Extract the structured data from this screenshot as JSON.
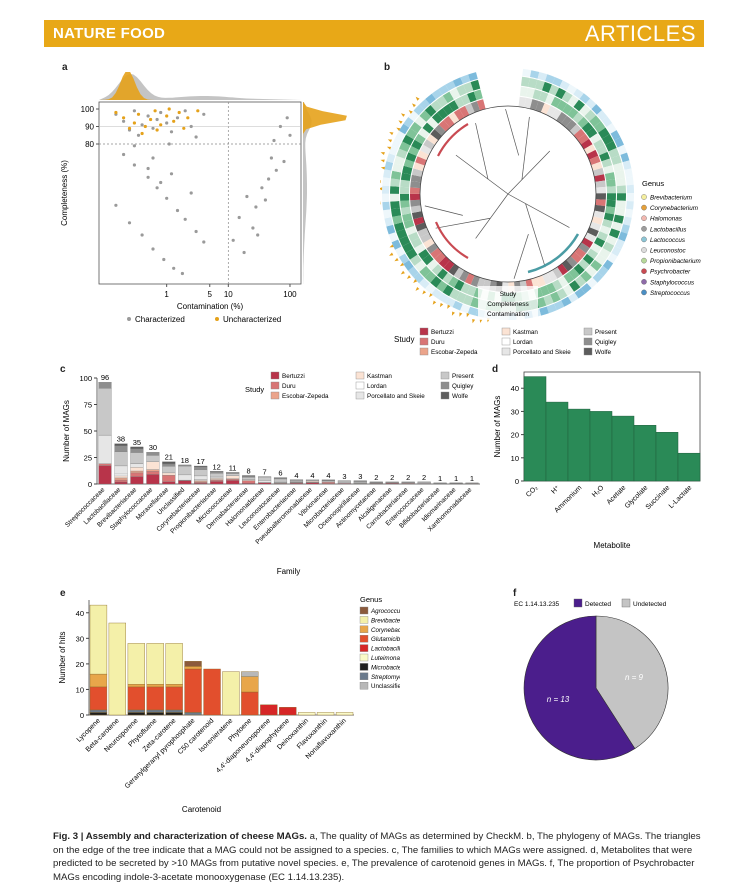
{
  "header": {
    "journal": "NATURE FOOD",
    "section": "ARTICLES"
  },
  "panels": {
    "a": "a",
    "b": "b",
    "c": "c",
    "d": "d",
    "e": "e",
    "f": "f"
  },
  "colors": {
    "banner": "#e8a817",
    "gold": "#e5a21b",
    "gray": "#9a9a9a",
    "green": "#2a8a57",
    "purple": "#4b1e8c",
    "pie_gray": "#c4c4c4"
  },
  "chart_data": [
    {
      "id": "a",
      "type": "scatter",
      "xlabel": "Contamination (%)",
      "ylabel": "Completeness (%)",
      "x_ticks": [
        "1",
        "5",
        "10",
        "100"
      ],
      "y_ticks": [
        "80",
        "90",
        "100"
      ],
      "x_scale": "log",
      "xlim": [
        0.1,
        130
      ],
      "ylim": [
        0,
        104
      ],
      "legend": [
        "Characterized",
        "Uncharacterized"
      ],
      "series": [
        {
          "name": "Characterized",
          "color": "#9a9a9a",
          "points": [
            [
              0.15,
              97
            ],
            [
              0.2,
              93
            ],
            [
              0.25,
              88
            ],
            [
              0.3,
              99
            ],
            [
              0.35,
              85
            ],
            [
              0.4,
              91
            ],
            [
              0.5,
              96
            ],
            [
              0.6,
              89
            ],
            [
              0.7,
              94
            ],
            [
              0.8,
              98
            ],
            [
              1.0,
              92
            ],
            [
              1.2,
              87
            ],
            [
              1.5,
              95
            ],
            [
              2.0,
              99
            ],
            [
              2.5,
              90
            ],
            [
              3,
              84
            ],
            [
              4,
              97
            ],
            [
              0.2,
              74
            ],
            [
              0.3,
              68
            ],
            [
              0.5,
              61
            ],
            [
              0.7,
              55
            ],
            [
              1.0,
              49
            ],
            [
              1.5,
              42
            ],
            [
              2,
              37
            ],
            [
              3,
              30
            ],
            [
              4,
              24
            ],
            [
              0.3,
              79
            ],
            [
              0.6,
              72
            ],
            [
              1.2,
              63
            ],
            [
              2.5,
              52
            ],
            [
              0.15,
              45
            ],
            [
              0.25,
              35
            ],
            [
              0.4,
              28
            ],
            [
              0.6,
              20
            ],
            [
              0.9,
              14
            ],
            [
              1.3,
              9
            ],
            [
              1.8,
              6
            ],
            [
              0.5,
              66
            ],
            [
              0.8,
              58
            ],
            [
              1.1,
              80
            ],
            [
              20,
              50
            ],
            [
              28,
              44
            ],
            [
              35,
              55
            ],
            [
              45,
              60
            ],
            [
              60,
              65
            ],
            [
              80,
              70
            ],
            [
              15,
              38
            ],
            [
              25,
              32
            ],
            [
              40,
              48
            ],
            [
              55,
              82
            ],
            [
              70,
              90
            ],
            [
              90,
              95
            ],
            [
              12,
              25
            ],
            [
              18,
              18
            ],
            [
              30,
              28
            ],
            [
              50,
              72
            ],
            [
              100,
              85
            ]
          ]
        },
        {
          "name": "Uncharacterized",
          "color": "#e5a21b",
          "points": [
            [
              0.15,
              98
            ],
            [
              0.2,
              95
            ],
            [
              0.3,
              92
            ],
            [
              0.35,
              97
            ],
            [
              0.45,
              90
            ],
            [
              0.55,
              94
            ],
            [
              0.65,
              99
            ],
            [
              0.8,
              91
            ],
            [
              1.0,
              96
            ],
            [
              1.3,
              93
            ],
            [
              1.6,
              98
            ],
            [
              2.2,
              95
            ],
            [
              3.2,
              99
            ],
            [
              0.25,
              89
            ],
            [
              0.4,
              86
            ],
            [
              0.7,
              88
            ],
            [
              1.1,
              100
            ],
            [
              1.9,
              89
            ]
          ]
        }
      ]
    },
    {
      "id": "b",
      "type": "phylogeny",
      "legend_title": "Genus",
      "genus": [
        {
          "name": "Brevibacterium",
          "color": "#f4ee9e"
        },
        {
          "name": "Corynebacterium",
          "color": "#e5a03a"
        },
        {
          "name": "Halomonas",
          "color": "#f2b8b0"
        },
        {
          "name": "Lactobacillus",
          "color": "#9d9d9d"
        },
        {
          "name": "Lactococcus",
          "color": "#8cc6d6"
        },
        {
          "name": "Leuconostoc",
          "color": "#dcdcdc"
        },
        {
          "name": "Propionibacterium",
          "color": "#b7d99a"
        },
        {
          "name": "Psychrobacter",
          "color": "#c94a52"
        },
        {
          "name": "Staphylococcus",
          "color": "#8e6aa8"
        },
        {
          "name": "Streptococcus",
          "color": "#4a8ec4"
        }
      ],
      "ring_labels": [
        "Study",
        "Completeness",
        "Contamination"
      ],
      "study_title": "Study",
      "study": [
        {
          "name": "Bertuzzi",
          "color": "#b8344a"
        },
        {
          "name": "Duru",
          "color": "#d87575"
        },
        {
          "name": "Escobar-Zepeda",
          "color": "#eba48b"
        },
        {
          "name": "Kastman",
          "color": "#fbe3d4"
        },
        {
          "name": "Lordan",
          "color": "#ffffff"
        },
        {
          "name": "Porcellato and Skeie",
          "color": "#e6e6e6"
        },
        {
          "name": "Present",
          "color": "#c8c8c8"
        },
        {
          "name": "Quigley",
          "color": "#8e8e8e"
        },
        {
          "name": "Wolfe",
          "color": "#5c5c5c"
        }
      ]
    },
    {
      "id": "c",
      "type": "bar",
      "xlabel": "Family",
      "ylabel": "Number of MAGs",
      "ylim": [
        0,
        100
      ],
      "y_ticks": [
        "0",
        "25",
        "50",
        "75",
        "100"
      ],
      "categories": [
        "Streptococcaceae",
        "Lactobacillaceae",
        "Brevibacteriaceae",
        "Staphylococcaceae",
        "Moraxellaceae",
        "Unclassified",
        "Corynebacteriaceae",
        "Propionibacteriaceae",
        "Micrococcaceae",
        "Dermabacteraceae",
        "Halomonadaceae",
        "Leuconostocaceae",
        "Enterobacteriaceae",
        "Pseudoalteromonadaceae",
        "Vibrionaceae",
        "Microbacteriaceae",
        "Oceanospirillaceae",
        "Actinomycetaceae",
        "Alcaligenaceae",
        "Carnobacteriaceae",
        "Enterococcaceae",
        "Bifidobacteriaceae",
        "Idiomarinaceae",
        "Xanthomonadaceae"
      ],
      "values": [
        96,
        38,
        35,
        30,
        21,
        18,
        17,
        12,
        11,
        8,
        7,
        6,
        4,
        4,
        4,
        3,
        3,
        2,
        2,
        2,
        2,
        1,
        1,
        1
      ],
      "value_labels": [
        "96",
        "38",
        "35",
        "30",
        "21",
        "18",
        "17",
        "12",
        "11",
        "8",
        "7",
        "6",
        "4",
        "4",
        "4",
        "3",
        "3",
        "2",
        "2",
        "2",
        "2",
        "1",
        "1",
        "1"
      ],
      "legend_title": "Study",
      "legend": [
        "Bertuzzi",
        "Duru",
        "Escobar-Zepeda",
        "Kastman",
        "Lordan",
        "Porcellato and Skeie",
        "Present",
        "Quigley",
        "Wolfe"
      ]
    },
    {
      "id": "d",
      "type": "bar",
      "xlabel": "Metabolite",
      "ylabel": "Number of MAGs",
      "ylim": [
        0,
        47
      ],
      "y_ticks": [
        "0",
        "10",
        "20",
        "30",
        "40"
      ],
      "categories": [
        "CO₂",
        "H⁺",
        "Ammonium",
        "H₂O",
        "Acetate",
        "Glycolate",
        "Succinate",
        "L-Lactate"
      ],
      "values": [
        45,
        34,
        31,
        30,
        28,
        24,
        21,
        12
      ],
      "color": "#2a8a57"
    },
    {
      "id": "e",
      "type": "bar",
      "xlabel": "Carotenoid",
      "ylabel": "Number of hits",
      "ylim": [
        0,
        45
      ],
      "y_ticks": [
        "0",
        "10",
        "20",
        "30",
        "40"
      ],
      "categories": [
        "Lycopene",
        "Beta-carotene",
        "Neurosporene",
        "Phytofluene",
        "Zeta-carotene",
        "Geranylgeranyl pyrophosphate",
        "C50 carotenoid",
        "Isorenieratene",
        "Phytoene",
        "4,4'-diaponeurosporene",
        "4,4'-diapophytoene",
        "Deinoxanthin",
        "Flavuxanthin",
        "Nonaflavuxanthin"
      ],
      "legend_title": "Genus",
      "legend": [
        "Agrococcus",
        "Brevibacterium",
        "Corynebacterium",
        "Glutamicibacter",
        "Lactobacillus",
        "Luteimonas",
        "Microbacterium",
        "Streptomyces",
        "Unclassified"
      ],
      "series": [
        {
          "name": "Agrococcus",
          "color": "#8b5a3c",
          "values": [
            0,
            0,
            0,
            0,
            0,
            2,
            0,
            0,
            0,
            0,
            0,
            0,
            0,
            0
          ]
        },
        {
          "name": "Brevibacterium",
          "color": "#f4f0a9",
          "values": [
            27,
            36,
            16,
            16,
            16,
            0,
            0,
            17,
            0,
            0,
            0,
            0,
            0,
            0
          ]
        },
        {
          "name": "Corynebacterium",
          "color": "#e8a64a",
          "values": [
            5,
            0,
            1,
            1,
            1,
            1,
            0,
            0,
            6,
            0,
            0,
            0,
            0,
            0
          ]
        },
        {
          "name": "Glutamicibacter",
          "color": "#e24f2d",
          "values": [
            9,
            0,
            9,
            9,
            9,
            17,
            18,
            0,
            9,
            0,
            0,
            0,
            0,
            0
          ]
        },
        {
          "name": "Lactobacillus",
          "color": "#d62626",
          "values": [
            0,
            0,
            0,
            0,
            0,
            0,
            0,
            0,
            0,
            4,
            3,
            0,
            0,
            0
          ]
        },
        {
          "name": "Luteimonas",
          "color": "#fafac8",
          "values": [
            0,
            0,
            0,
            0,
            0,
            0,
            0,
            0,
            0,
            0,
            0,
            1,
            1,
            1
          ]
        },
        {
          "name": "Microbacterium",
          "color": "#1f1f1f",
          "values": [
            1,
            0,
            1,
            1,
            1,
            0,
            0,
            0,
            0,
            0,
            0,
            0,
            0,
            0
          ]
        },
        {
          "name": "Streptomyces",
          "color": "#6a7a8c",
          "values": [
            1,
            0,
            1,
            1,
            1,
            1,
            0,
            0,
            0,
            0,
            0,
            0,
            0,
            0
          ]
        },
        {
          "name": "Unclassified",
          "color": "#b8b8b8",
          "values": [
            0,
            0,
            0,
            0,
            0,
            0,
            0,
            0,
            2,
            0,
            0,
            0,
            0,
            0
          ]
        }
      ]
    },
    {
      "id": "f",
      "type": "pie",
      "title": "EC 1.14.13.235",
      "legend": [
        "Detected",
        "Undetected"
      ],
      "slices": [
        {
          "name": "Detected",
          "value": 13,
          "color": "#4b1e8c",
          "label": "n = 13"
        },
        {
          "name": "Undetected",
          "value": 9,
          "color": "#c4c4c4",
          "label": "n = 9"
        }
      ]
    }
  ],
  "caption": {
    "label": "Fig. 3 | Assembly and characterization of cheese MAGs.",
    "text": " a, The quality of MAGs as determined by CheckM. b, The phylogeny of MAGs. The triangles on the edge of the tree indicate that a MAG could not be assigned to a species. c, The families to which MAGs were assigned. d, Metabolites that were predicted to be secreted by >10 MAGs from putative novel species. e, The prevalence of carotenoid genes in MAGs. f, The proportion of Psychrobacter MAGs encoding indole-3-acetate monooxygenase (EC 1.14.13.235)."
  }
}
